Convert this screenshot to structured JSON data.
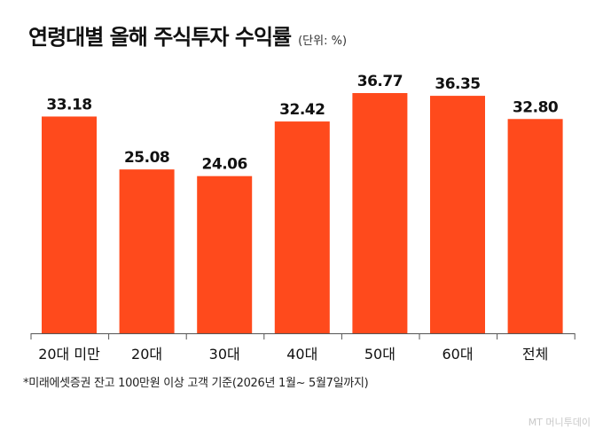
{
  "title": "연령대별 올해 주식투자 수익률",
  "unit": "(단위: %)",
  "footnote": "*미래에셋증권 잔고 100만원 이상 고객 기준(2026년 1월~ 5월7일까지)",
  "credit": "MT 머니투데이",
  "colors": {
    "bar": "#ff4a1c",
    "axis": "#555555",
    "text": "#111111"
  },
  "chart_data": {
    "type": "bar",
    "categories": [
      "20대 미만",
      "20대",
      "30대",
      "40대",
      "50대",
      "60대",
      "전체"
    ],
    "values": [
      33.18,
      25.08,
      24.06,
      32.42,
      36.77,
      36.35,
      32.8
    ],
    "value_labels": [
      "33.18",
      "25.08",
      "24.06",
      "32.42",
      "36.77",
      "36.35",
      "32.80"
    ],
    "ylim": [
      0,
      40
    ],
    "grid": false,
    "legend": "none"
  }
}
